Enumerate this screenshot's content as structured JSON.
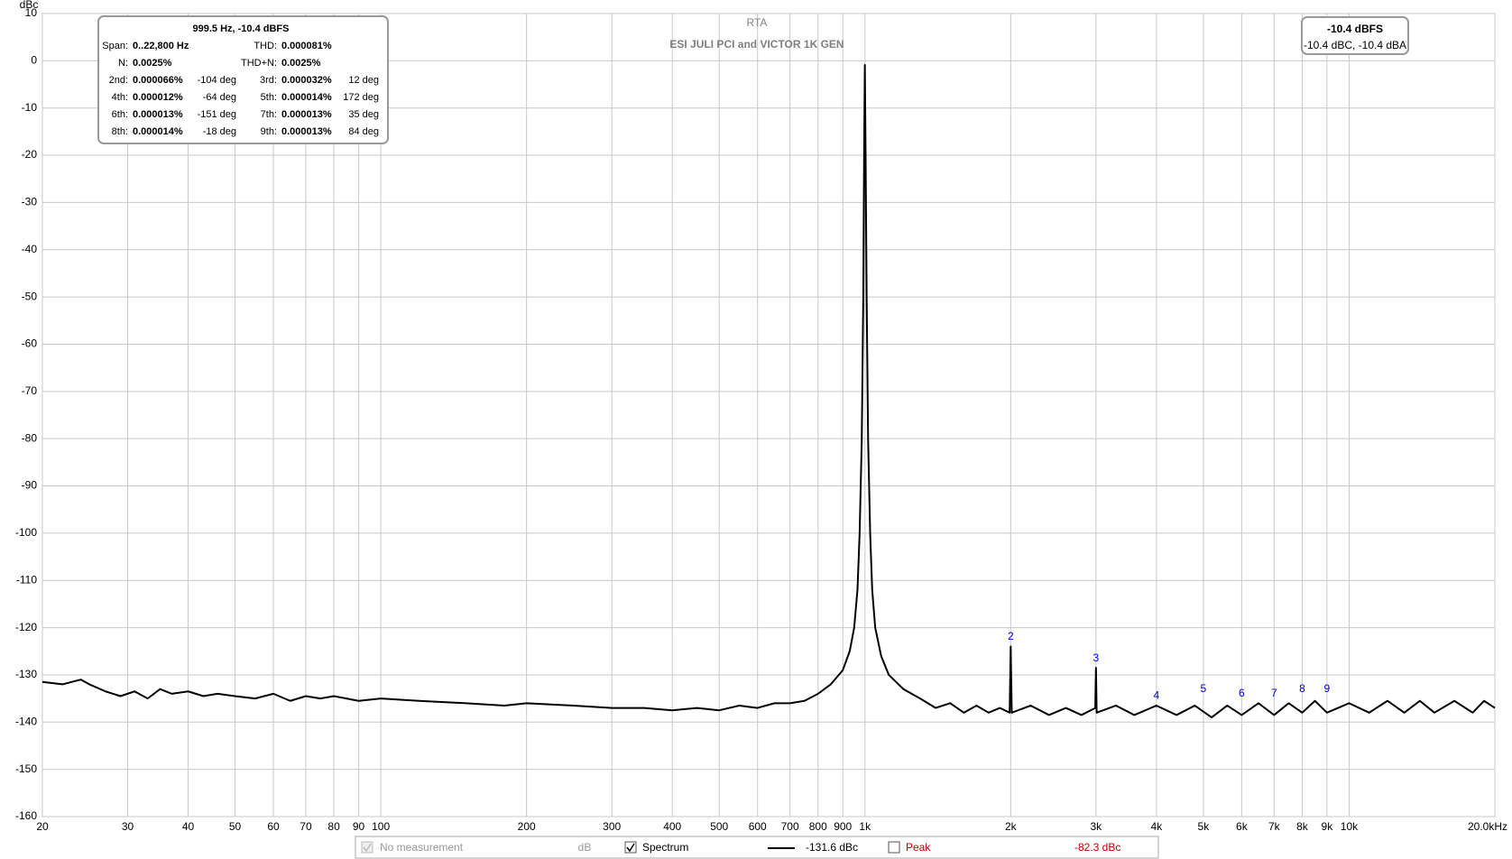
{
  "chart_data": {
    "type": "line",
    "title": "RTA",
    "subtitle": "ESI JULI PCI and VICTOR 1K GEN",
    "y_label": "dBc",
    "log_x": true,
    "grid": true,
    "xlim": [
      20,
      20000
    ],
    "ylim": [
      -160,
      10
    ],
    "xticks": [
      20,
      30,
      40,
      50,
      60,
      70,
      80,
      90,
      100,
      200,
      300,
      400,
      500,
      600,
      700,
      800,
      900,
      {
        "value": 1000,
        "label": "1k"
      },
      {
        "value": 2000,
        "label": "2k"
      },
      {
        "value": 3000,
        "label": "3k"
      },
      {
        "value": 4000,
        "label": "4k"
      },
      {
        "value": 5000,
        "label": "5k"
      },
      {
        "value": 6000,
        "label": "6k"
      },
      {
        "value": 7000,
        "label": "7k"
      },
      {
        "value": 8000,
        "label": "8k"
      },
      {
        "value": 9000,
        "label": "9k"
      },
      {
        "value": 10000,
        "label": "10k"
      },
      {
        "value": 20000,
        "label": "20.0kHz"
      }
    ],
    "yticks": [
      10,
      0,
      -10,
      -20,
      -30,
      -40,
      -50,
      -60,
      -70,
      -80,
      -90,
      -100,
      -110,
      -120,
      -130,
      -140,
      -150,
      -160
    ],
    "series": [
      {
        "name": "Spectrum",
        "color": "#000000",
        "legend_value": "-131.6 dBc",
        "x": [
          20,
          22,
          24,
          25,
          27,
          29,
          31,
          33,
          35,
          37,
          40,
          43,
          46,
          50,
          55,
          60,
          65,
          70,
          75,
          80,
          90,
          100,
          120,
          150,
          180,
          200,
          250,
          300,
          350,
          400,
          450,
          500,
          550,
          600,
          650,
          700,
          750,
          800,
          850,
          900,
          930,
          950,
          965,
          975,
          985,
          992,
          996,
          999.5,
          1003,
          1008,
          1015,
          1025,
          1035,
          1050,
          1080,
          1120,
          1200,
          1300,
          1400,
          1500,
          1600,
          1700,
          1800,
          1900,
          1990,
          2000,
          2010,
          2200,
          2400,
          2600,
          2800,
          2990,
          3000,
          3010,
          3300,
          3600,
          4000,
          4400,
          4800,
          5200,
          5600,
          6000,
          6500,
          7000,
          7500,
          8000,
          8500,
          9000,
          10000,
          11000,
          12000,
          13000,
          14000,
          15000,
          16500,
          18000,
          19000,
          20000
        ],
        "values": [
          -131.5,
          -132,
          -131,
          -132,
          -133.5,
          -134.5,
          -133.5,
          -135,
          -133,
          -134,
          -133.5,
          -134.5,
          -134,
          -134.5,
          -135,
          -134,
          -135.5,
          -134.5,
          -135,
          -134.5,
          -135.5,
          -135,
          -135.5,
          -136,
          -136.5,
          -136,
          -136.5,
          -137,
          -137,
          -137.5,
          -137,
          -137.5,
          -136.5,
          -137,
          -136,
          -136,
          -135.5,
          -134,
          -132,
          -129,
          -125,
          -120,
          -112,
          -100,
          -80,
          -50,
          -20,
          -0.9,
          -20,
          -50,
          -80,
          -100,
          -112,
          -120,
          -126,
          -130,
          -133,
          -135,
          -137,
          -136,
          -138,
          -136.5,
          -138,
          -137,
          -138,
          -124,
          -138,
          -136.5,
          -138.5,
          -137,
          -138.5,
          -137,
          -128.5,
          -138,
          -136.5,
          -138.5,
          -136.5,
          -138.5,
          -136.5,
          -139,
          -136.5,
          -138.5,
          -136,
          -138.5,
          -136,
          -138,
          -135.5,
          -138,
          -136,
          -138,
          -135.5,
          -138,
          -135.5,
          -138,
          -135.5,
          -138,
          -135.5,
          -137
        ]
      }
    ],
    "harmonic_labels": [
      {
        "label": "2",
        "x": 2000,
        "y": -122
      },
      {
        "label": "3",
        "x": 3000,
        "y": -126.5
      },
      {
        "label": "4",
        "x": 4000,
        "y": -134.5
      },
      {
        "label": "5",
        "x": 5000,
        "y": -133
      },
      {
        "label": "6",
        "x": 6000,
        "y": -134
      },
      {
        "label": "7",
        "x": 7000,
        "y": -134
      },
      {
        "label": "8",
        "x": 8000,
        "y": -133
      },
      {
        "label": "9",
        "x": 9000,
        "y": -133
      }
    ],
    "harmonic_color": "#0000cc",
    "thd_box": {
      "header": "999.5 Hz, -10.4 dBFS",
      "rows": [
        [
          "Span:",
          "0..22,800 Hz",
          "THD:",
          "0.000081%"
        ],
        [
          "N:",
          "0.0025%",
          "THD+N:",
          "0.0025%"
        ],
        [
          "2nd:",
          "0.000066%",
          "-104 deg",
          "3rd:",
          "0.000032%",
          "12 deg"
        ],
        [
          "4th:",
          "0.000012%",
          "-64 deg",
          "5th:",
          "0.000014%",
          "172 deg"
        ],
        [
          "6th:",
          "0.000013%",
          "-151 deg",
          "7th:",
          "0.000013%",
          "35 deg"
        ],
        [
          "8th:",
          "0.000014%",
          "-18 deg",
          "9th:",
          "0.000013%",
          "84 deg"
        ]
      ]
    },
    "level_box": {
      "main": "-10.4 dBFS",
      "sub": "-10.4 dBC, -10.4 dBA"
    },
    "legend_extra": {
      "no_measurement": "No measurement",
      "no_measurement_unit": "dB",
      "peak": "Peak",
      "peak_value": "-82.3 dBc",
      "peak_color": "#c00000"
    }
  }
}
